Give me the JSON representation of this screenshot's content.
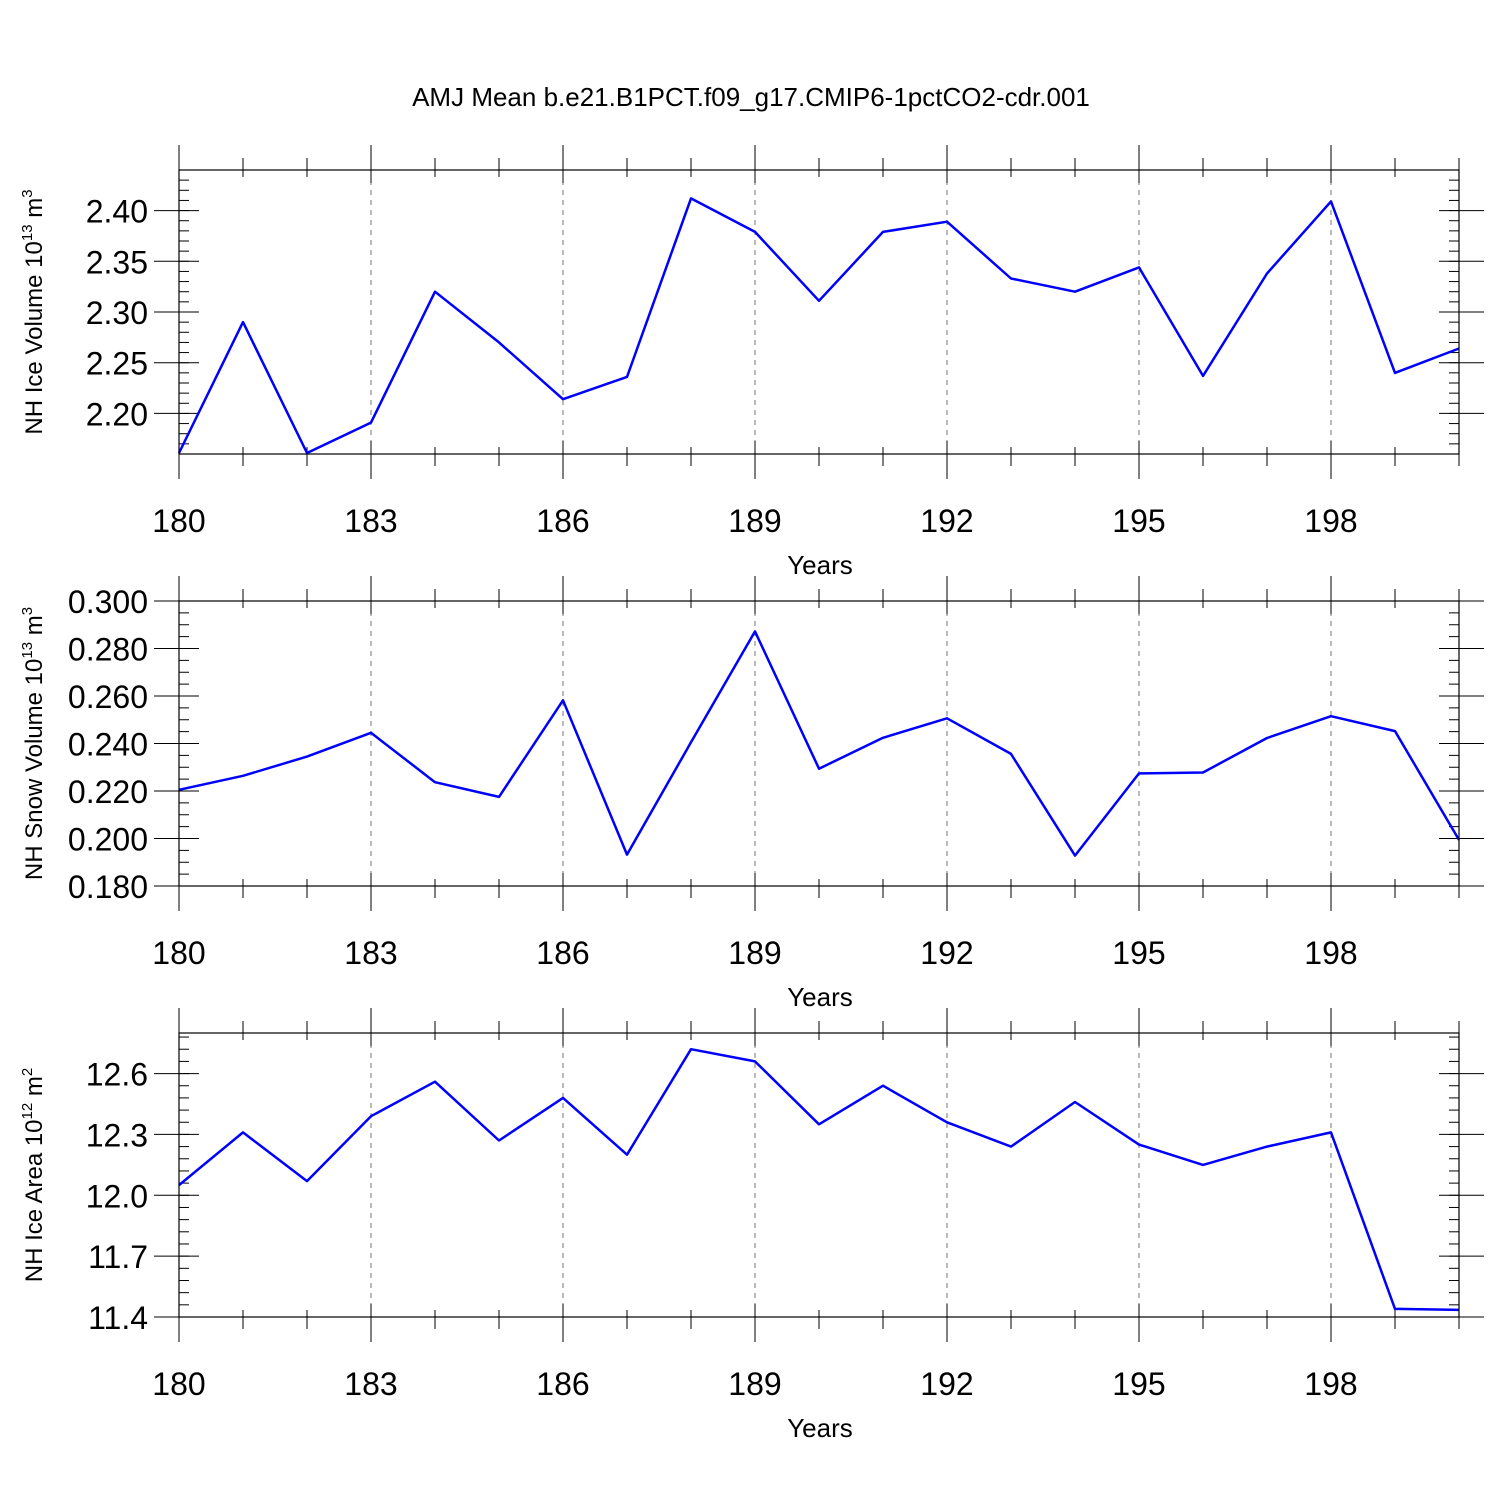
{
  "figure_title": "AMJ Mean b.e21.B1PCT.f09_g17.CMIP6-1pctCO2-cdr.001",
  "chart_data": [
    {
      "type": "line",
      "title": "",
      "xlabel": "Years",
      "ylabel_main": "NH Ice Volume 10",
      "ylabel_exp": "13",
      "ylabel_unit": "m",
      "ylabel_unit_exp": "3",
      "x": [
        180,
        181,
        182,
        183,
        184,
        185,
        186,
        187,
        188,
        189,
        190,
        191,
        192,
        193,
        194,
        195,
        196,
        197,
        198,
        199,
        200
      ],
      "values": [
        2.161,
        2.29,
        2.161,
        2.191,
        2.32,
        2.27,
        2.214,
        2.236,
        2.412,
        2.379,
        2.311,
        2.379,
        2.389,
        2.333,
        2.32,
        2.344,
        2.237,
        2.338,
        2.409,
        2.24,
        2.264
      ],
      "xlim": [
        180,
        200
      ],
      "ylim": [
        2.16,
        2.44
      ],
      "xticks": [
        180,
        183,
        186,
        189,
        192,
        195,
        198
      ],
      "xtick_labels": [
        "180",
        "183",
        "186",
        "189",
        "192",
        "195",
        "198"
      ],
      "yticks": [
        2.2,
        2.25,
        2.3,
        2.35,
        2.4
      ],
      "ytick_labels": [
        "2.20",
        "2.25",
        "2.30",
        "2.35",
        "2.40"
      ],
      "yminor_step": 0.01,
      "line_color": "#0000ff"
    },
    {
      "type": "line",
      "title": "",
      "xlabel": "Years",
      "ylabel_main": "NH Snow Volume 10",
      "ylabel_exp": "13",
      "ylabel_unit": "m",
      "ylabel_unit_exp": "3",
      "x": [
        180,
        181,
        182,
        183,
        184,
        185,
        186,
        187,
        188,
        189,
        190,
        191,
        192,
        193,
        194,
        195,
        196,
        197,
        198,
        199,
        200
      ],
      "values": [
        0.2205,
        0.2264,
        0.2345,
        0.2445,
        0.2237,
        0.2175,
        0.2582,
        0.1932,
        0.2405,
        0.2872,
        0.2294,
        0.2424,
        0.2506,
        0.2356,
        0.1928,
        0.2274,
        0.2278,
        0.2423,
        0.2515,
        0.2452,
        0.1994
      ],
      "xlim": [
        180,
        200
      ],
      "ylim": [
        0.18,
        0.3
      ],
      "xticks": [
        180,
        183,
        186,
        189,
        192,
        195,
        198
      ],
      "xtick_labels": [
        "180",
        "183",
        "186",
        "189",
        "192",
        "195",
        "198"
      ],
      "yticks": [
        0.18,
        0.2,
        0.22,
        0.24,
        0.26,
        0.28,
        0.3
      ],
      "ytick_labels": [
        "0.180",
        "0.200",
        "0.220",
        "0.240",
        "0.260",
        "0.280",
        "0.300"
      ],
      "yminor_step": 0.005,
      "line_color": "#0000ff"
    },
    {
      "type": "line",
      "title": "",
      "xlabel": "Years",
      "ylabel_main": "NH Ice Area 10",
      "ylabel_exp": "12",
      "ylabel_unit": "m",
      "ylabel_unit_exp": "2",
      "x": [
        180,
        181,
        182,
        183,
        184,
        185,
        186,
        187,
        188,
        189,
        190,
        191,
        192,
        193,
        194,
        195,
        196,
        197,
        198,
        199,
        200
      ],
      "values": [
        12.05,
        12.31,
        12.07,
        12.39,
        12.56,
        12.27,
        12.48,
        12.2,
        12.72,
        12.66,
        12.35,
        12.54,
        12.36,
        12.24,
        12.46,
        12.25,
        12.15,
        12.24,
        12.31,
        11.44,
        11.435
      ],
      "xlim": [
        180,
        200
      ],
      "ylim": [
        11.4,
        12.8
      ],
      "xticks": [
        180,
        183,
        186,
        189,
        192,
        195,
        198
      ],
      "xtick_labels": [
        "180",
        "183",
        "186",
        "189",
        "192",
        "195",
        "198"
      ],
      "yticks": [
        11.4,
        11.7,
        12.0,
        12.3,
        12.6
      ],
      "ytick_labels": [
        "11.4",
        "11.7",
        "12.0",
        "12.3",
        "12.6"
      ],
      "yminor_step": 0.06,
      "line_color": "#0000ff"
    }
  ]
}
